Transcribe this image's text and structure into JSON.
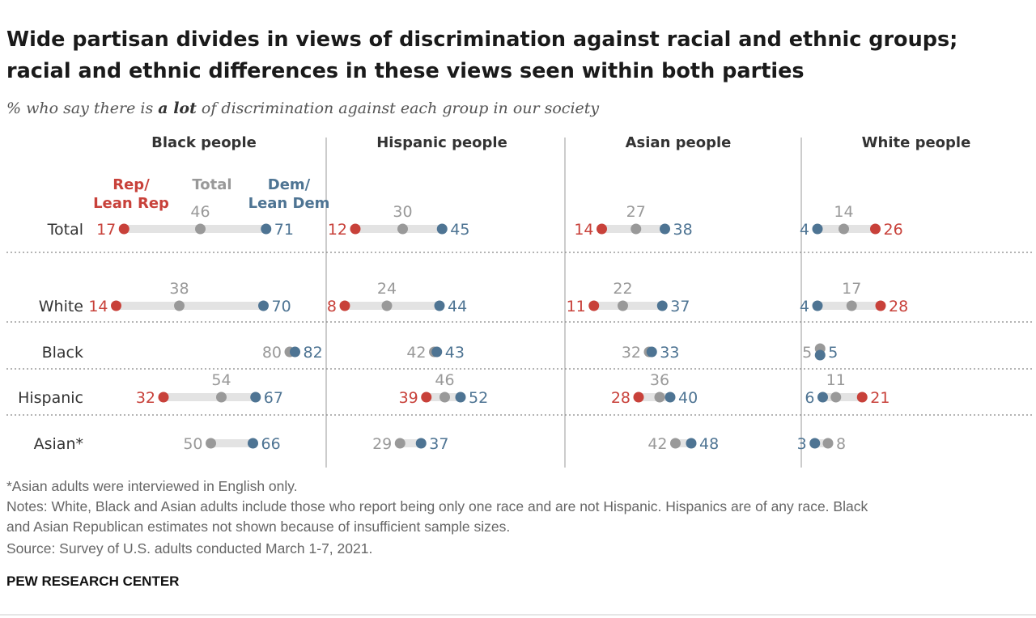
{
  "title_line1": "Wide partisan divides in views of discrimination against racial and ethnic groups;",
  "title_line2": "racial and ethnic differences in these views seen within both parties",
  "subtitle_pre": "% who say there is ",
  "subtitle_em": "a lot",
  "subtitle_post": " of discrimination against each group in our society",
  "legend": {
    "rep_line1": "Rep/",
    "rep_line2": "Lean Rep",
    "total": "Total",
    "dem_line1": "Dem/",
    "dem_line2": "Lean Dem"
  },
  "colors": {
    "rep": "#c8413a",
    "total": "#999999",
    "dem": "#4e7493",
    "bar": "#e3e3e3"
  },
  "chart_data": {
    "type": "dot-range",
    "unit": "%",
    "rows": [
      "Total",
      "White",
      "Black",
      "Hispanic",
      "Asian*"
    ],
    "panels": [
      {
        "title": "Black people",
        "values": [
          {
            "row": "Total",
            "rep": 17,
            "total": 46,
            "dem": 71
          },
          {
            "row": "White",
            "rep": 14,
            "total": 38,
            "dem": 70
          },
          {
            "row": "Black",
            "rep": null,
            "total": 80,
            "dem": 82
          },
          {
            "row": "Hispanic",
            "rep": 32,
            "total": 54,
            "dem": 67
          },
          {
            "row": "Asian*",
            "rep": null,
            "total": 50,
            "dem": 66
          }
        ]
      },
      {
        "title": "Hispanic people",
        "values": [
          {
            "row": "Total",
            "rep": 12,
            "total": 30,
            "dem": 45
          },
          {
            "row": "White",
            "rep": 8,
            "total": 24,
            "dem": 44
          },
          {
            "row": "Black",
            "rep": null,
            "total": 42,
            "dem": 43
          },
          {
            "row": "Hispanic",
            "rep": 39,
            "total": 46,
            "dem": 52
          },
          {
            "row": "Asian*",
            "rep": null,
            "total": 29,
            "dem": 37
          }
        ]
      },
      {
        "title": "Asian people",
        "values": [
          {
            "row": "Total",
            "rep": 14,
            "total": 27,
            "dem": 38
          },
          {
            "row": "White",
            "rep": 11,
            "total": 22,
            "dem": 37
          },
          {
            "row": "Black",
            "rep": null,
            "total": 32,
            "dem": 33
          },
          {
            "row": "Hispanic",
            "rep": 28,
            "total": 36,
            "dem": 40
          },
          {
            "row": "Asian*",
            "rep": null,
            "total": 42,
            "dem": 48
          }
        ]
      },
      {
        "title": "White people",
        "values": [
          {
            "row": "Total",
            "rep": 26,
            "total": 14,
            "dem": 4
          },
          {
            "row": "White",
            "rep": 28,
            "total": 17,
            "dem": 4
          },
          {
            "row": "Black",
            "rep": null,
            "total": 5,
            "dem": 5
          },
          {
            "row": "Hispanic",
            "rep": 21,
            "total": 11,
            "dem": 6
          },
          {
            "row": "Asian*",
            "rep": null,
            "total": 8,
            "dem": 3
          }
        ]
      }
    ]
  },
  "footnote": "*Asian adults were interviewed in English only.",
  "notes_line1": "Notes: White, Black and Asian adults include those who report being only one race and are not Hispanic. Hispanics are of any race. Black",
  "notes_line2": "and Asian Republican estimates not shown because of insufficient sample sizes.",
  "source": "Source: Survey of U.S. adults conducted March 1-7, 2021.",
  "brand": "PEW RESEARCH CENTER"
}
